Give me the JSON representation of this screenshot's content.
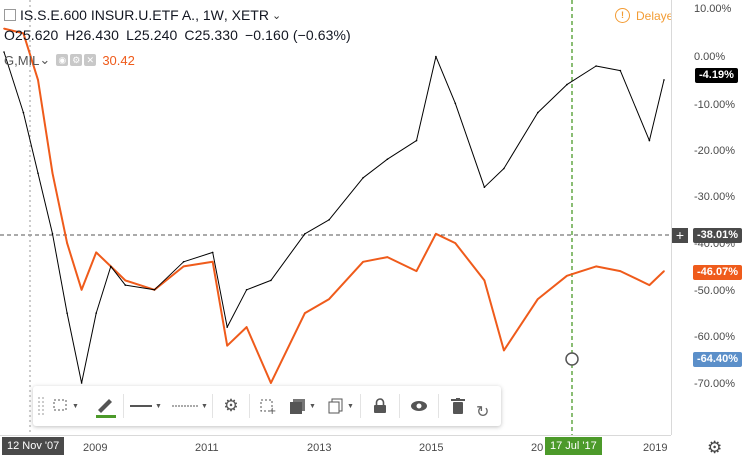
{
  "legend": {
    "symbol_title": "IS.S.E.600 INSUR.U.ETF A.",
    "interval": "1W",
    "exchange": "XETR",
    "open": "O25.620",
    "high": "H26.430",
    "low": "L25.240",
    "close": "C25.330",
    "change": "−0.160 (−0.63%)",
    "compare_symbol": "G,MIL",
    "compare_value": "30.42",
    "delayed": "Delayed"
  },
  "price_scale": {
    "ticks": [
      "10.00%",
      "0.00%",
      "-10.00%",
      "-20.00%",
      "-30.00%",
      "-40.00%",
      "-50.00%",
      "-60.00%",
      "-70.00%"
    ],
    "labels": [
      {
        "text": "-4.19%",
        "bg": "#000000",
        "fg": "#ffffff"
      },
      {
        "text": "-38.01%",
        "bg": "#4a4a4a",
        "fg": "#ffffff"
      },
      {
        "text": "-46.07%",
        "bg": "#ef5b1b",
        "fg": "#ffffff"
      },
      {
        "text": "-64.40%",
        "bg": "#5b8fc9",
        "fg": "#ffffff"
      }
    ]
  },
  "time_scale": {
    "ticks": [
      "2009",
      "2011",
      "2013",
      "2015",
      "20",
      "2019"
    ],
    "cursor_label": "12 Nov '07",
    "crosshair_label": "17 Jul '17"
  },
  "colors": {
    "main_series": "#000000",
    "compare_series": "#ef5b1b",
    "crosshair_vertical": "#4c9a2a",
    "crosshair_horizontal": "#555555"
  },
  "toolbar": {
    "items": [
      "select-area-icon",
      "brush-icon",
      "line-style-icon",
      "dotted-line-icon",
      "settings-icon",
      "add-alert-icon",
      "template-icon",
      "clone-icon",
      "lock-icon",
      "visibility-icon",
      "delete-icon"
    ],
    "undo": "undo-icon"
  },
  "chart_data": {
    "type": "line",
    "title": "IS.S.E.600 INSUR.U.ETF A.",
    "xlabel": "",
    "ylabel": "",
    "x": [
      "2007-11",
      "2008-03",
      "2008-06",
      "2008-09",
      "2008-12",
      "2009-03",
      "2009-06",
      "2009-09",
      "2009-12",
      "2010-06",
      "2010-12",
      "2011-06",
      "2011-09",
      "2012-01",
      "2012-06",
      "2013-01",
      "2013-06",
      "2014-01",
      "2014-06",
      "2014-12",
      "2015-04",
      "2015-08",
      "2016-02",
      "2016-06",
      "2017-01",
      "2017-07",
      "2018-01",
      "2018-06",
      "2018-12",
      "2019-03"
    ],
    "series": [
      {
        "values": [
          1,
          -12,
          -25,
          -38,
          -55,
          -70,
          -55,
          -45,
          -49,
          -50,
          -44,
          -42,
          -58,
          -50,
          -48,
          -38,
          -35,
          -26,
          -22,
          -18,
          0,
          -10,
          -28,
          -24,
          -12,
          -6,
          -2,
          -3,
          -18,
          -5
        ]
      },
      {
        "name": "G,MIL",
        "values": [
          6,
          5,
          -5,
          -25,
          -40,
          -50,
          -42,
          -45,
          -48,
          -50,
          -45,
          -44,
          -62,
          -58,
          -70,
          -55,
          -52,
          -44,
          -43,
          -46,
          -38,
          -40,
          -48,
          -63,
          -52,
          -47,
          -45,
          -46,
          -49,
          -46
        ]
      }
    ],
    "ylim": [
      -78,
      12
    ],
    "grid": false,
    "legend": "top-left"
  }
}
